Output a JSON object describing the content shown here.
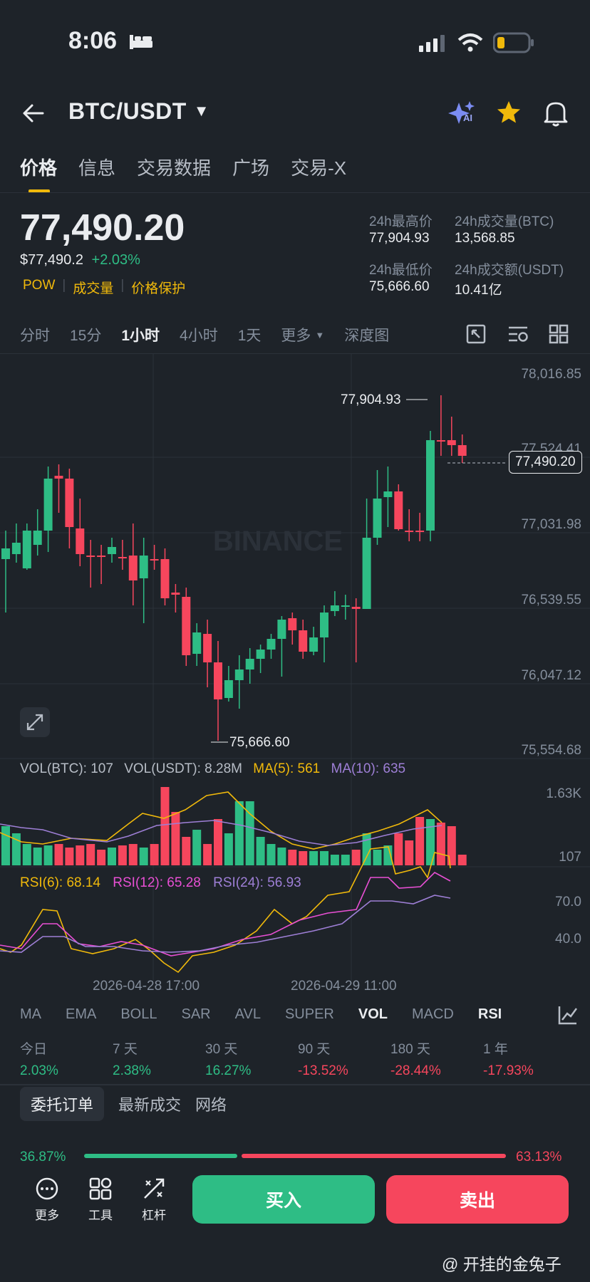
{
  "status": {
    "time": "8:06"
  },
  "header": {
    "pair": "BTC/USDT",
    "ai_label": "AI"
  },
  "tabs": [
    "价格",
    "信息",
    "交易数据",
    "广场",
    "交易-X"
  ],
  "price": {
    "last": "77,490.20",
    "usd": "$77,490.2",
    "change": "+2.03%",
    "tags": [
      "POW",
      "成交量",
      "价格保护"
    ]
  },
  "stats": {
    "high_label": "24h最高价",
    "high": "77,904.93",
    "vol_btc_label": "24h成交量(BTC)",
    "vol_btc": "13,568.85",
    "low_label": "24h最低价",
    "low": "75,666.60",
    "vol_usdt_label": "24h成交额(USDT)",
    "vol_usdt": "10.41亿"
  },
  "intervals": [
    "分时",
    "15分",
    "1小时",
    "4小时",
    "1天",
    "更多",
    "深度图"
  ],
  "chart": {
    "watermark": "BINANCE",
    "price_axis": [
      "78,016.85",
      "77,524.41",
      "77,031.98",
      "76,539.55",
      "76,047.12",
      "75,554.68"
    ],
    "high_marker": "77,904.93",
    "low_marker": "75,666.60",
    "last_marker": "77,490.20",
    "vol_header": {
      "vol_btc": "VOL(BTC): 107",
      "vol_usdt": "VOL(USDT): 8.28M",
      "ma5": "MA(5): 561",
      "ma10": "MA(10): 635"
    },
    "vol_axis": [
      "1.63K",
      "107"
    ],
    "rsi_header": {
      "rsi6": "RSI(6): 68.14",
      "rsi12": "RSI(12): 65.28",
      "rsi24": "RSI(24): 56.93"
    },
    "rsi_axis": [
      "70.0",
      "40.0"
    ],
    "dates": [
      "2026-04-28 17:00",
      "2026-04-29 11:00"
    ],
    "colors": {
      "up": "#2ebd85",
      "down": "#f6465d",
      "ma5": "#f0b90b",
      "ma10": "#9e7fd6",
      "rsi12": "#e84fd4"
    }
  },
  "indicators": [
    "MA",
    "EMA",
    "BOLL",
    "SAR",
    "AVL",
    "SUPER",
    "VOL",
    "MACD",
    "RSI"
  ],
  "performance": [
    {
      "label": "今日",
      "value": "2.03%",
      "dir": "up"
    },
    {
      "label": "7 天",
      "value": "2.38%",
      "dir": "up"
    },
    {
      "label": "30 天",
      "value": "16.27%",
      "dir": "up"
    },
    {
      "label": "90 天",
      "value": "-13.52%",
      "dir": "down"
    },
    {
      "label": "180 天",
      "value": "-28.44%",
      "dir": "down"
    },
    {
      "label": "1 年",
      "value": "-17.93%",
      "dir": "down"
    }
  ],
  "order_tabs": [
    "委托订单",
    "最新成交",
    "网络"
  ],
  "ratio": {
    "buy": "36.87%",
    "sell": "63.13%",
    "buy_fraction": 0.3687
  },
  "bottom": {
    "more": "更多",
    "tools": "工具",
    "leverage": "杠杆",
    "buy": "买入",
    "sell": "卖出"
  },
  "watermark": "@ 开挂的金兔子"
}
